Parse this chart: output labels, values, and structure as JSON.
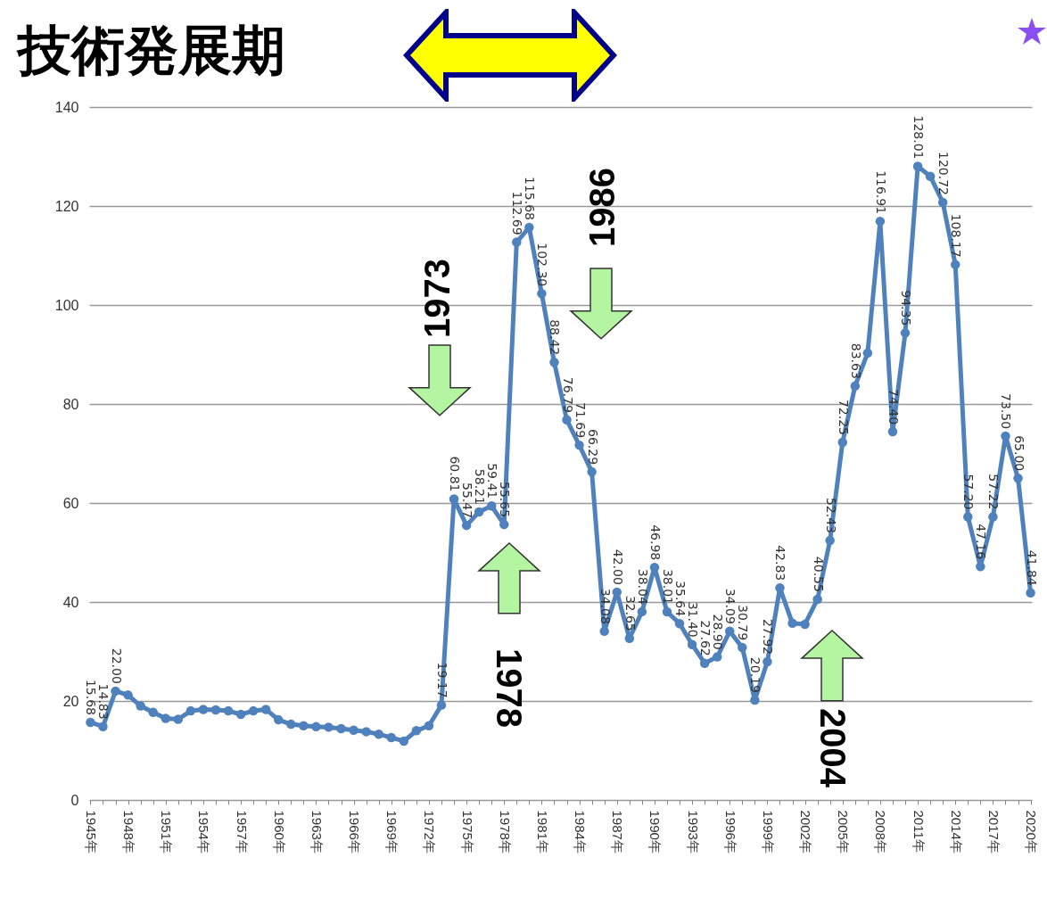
{
  "chart_data": {
    "type": "line",
    "title": "技術発展期",
    "categories": [
      "1945年",
      null,
      null,
      "1948年",
      null,
      null,
      "1951年",
      null,
      null,
      "1954年",
      null,
      null,
      "1957年",
      null,
      null,
      "1960年",
      null,
      null,
      "1963年",
      null,
      null,
      "1966年",
      null,
      null,
      "1969年",
      null,
      null,
      "1972年",
      null,
      null,
      "1975年",
      null,
      null,
      "1978年",
      null,
      null,
      "1981年",
      null,
      null,
      "1984年",
      null,
      null,
      "1987年",
      null,
      null,
      "1990年",
      null,
      null,
      "1993年",
      null,
      null,
      "1996年",
      null,
      null,
      "1999年",
      null,
      null,
      "2002年",
      null,
      null,
      "2005年",
      null,
      null,
      "2008年",
      null,
      null,
      "2011年",
      null,
      null,
      "2014年",
      null,
      null,
      "2017年",
      null,
      null,
      "2020年"
    ],
    "series": [
      {
        "color": "#4f81bd",
        "values": [
          15.68,
          14.83,
          22.0,
          21.2,
          19.0,
          17.7,
          16.5,
          16.3,
          18.0,
          18.3,
          18.2,
          18.0,
          17.3,
          18.0,
          18.3,
          16.2,
          15.3,
          15.0,
          14.8,
          14.7,
          14.4,
          14.1,
          13.8,
          13.3,
          12.6,
          11.9,
          14.0,
          15.0,
          19.17,
          60.81,
          55.47,
          58.21,
          59.41,
          55.65,
          112.69,
          115.68,
          102.3,
          88.42,
          76.79,
          71.69,
          66.29,
          34.08,
          42.0,
          32.65,
          38.04,
          46.98,
          38.01,
          35.64,
          31.4,
          27.62,
          28.9,
          34.09,
          30.79,
          20.19,
          27.92,
          42.83,
          35.7,
          35.5,
          40.55,
          52.43,
          72.25,
          83.63,
          90.3,
          116.91,
          74.4,
          94.35,
          128.01,
          126,
          120.72,
          108.17,
          57.2,
          47.16,
          57.22,
          73.5,
          65.0,
          41.84
        ],
        "value_labels": [
          "15.68",
          "14.83",
          "22.00",
          null,
          null,
          null,
          null,
          null,
          null,
          null,
          null,
          null,
          null,
          null,
          null,
          null,
          null,
          null,
          null,
          null,
          null,
          null,
          null,
          null,
          null,
          null,
          null,
          null,
          "19.17",
          "60.81",
          "55.47",
          "58.21",
          "59.41",
          "55.65",
          "112.69",
          "115.68",
          "102.30",
          "88.42",
          "76.79",
          "71.69",
          "66.29",
          "34.08",
          "42.00",
          "32.65",
          "38.04",
          "46.98",
          "38.01",
          "35.64",
          "31.40",
          "27.62",
          "28.90",
          "34.09",
          "30.79",
          "20.19",
          "27.92",
          "42.83",
          null,
          null,
          "40.55",
          "52.43",
          "72.25",
          "83.63",
          null,
          "116.91",
          "74.40",
          "94.35",
          "128.01",
          null,
          "120.72",
          "108.17",
          "57.20",
          "47.16",
          "57.22",
          "73.50",
          "65.00",
          "41.84"
        ]
      }
    ],
    "ylim": [
      0,
      140
    ],
    "yticks": [
      0,
      20,
      40,
      60,
      80,
      100,
      120,
      140
    ],
    "grid": "y",
    "marker": "circle",
    "line_style": "solid",
    "annotations": [
      "1973",
      "1986",
      "1978",
      "2004"
    ]
  }
}
